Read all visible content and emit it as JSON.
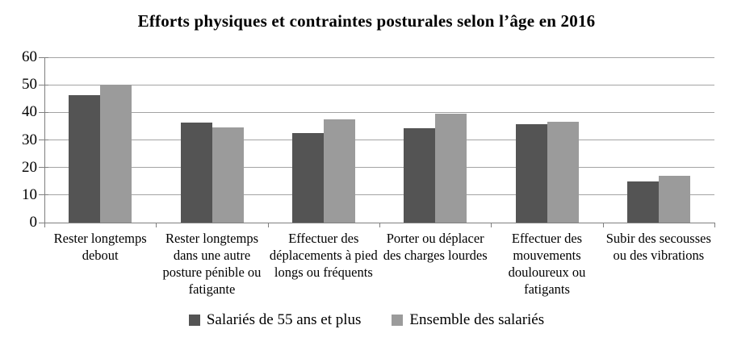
{
  "page": {
    "background": "#ffffff"
  },
  "chart_data": {
    "type": "bar",
    "title": "Efforts physiques et contraintes posturales selon l’âge en 2016",
    "categories": [
      "Rester longtemps debout",
      "Rester longtemps dans une autre posture pénible ou fatigante",
      "Effectuer des déplacements à pied longs ou fréquents",
      "Porter ou déplacer des charges lourdes",
      "Effectuer des mouvements douloureux ou fatigants",
      "Subir des secousses ou des vibrations"
    ],
    "series": [
      {
        "name": "Salariés de 55 ans et plus",
        "color": "#545454",
        "values": [
          46.3,
          36.2,
          32.4,
          34.1,
          35.6,
          14.9
        ]
      },
      {
        "name": "Ensemble des salariés",
        "color": "#9B9B9B",
        "values": [
          50.0,
          34.5,
          37.4,
          39.6,
          36.5,
          16.9
        ]
      }
    ],
    "xlabel": "",
    "ylabel": "",
    "ylim": [
      0,
      60
    ],
    "yticks": [
      0,
      10,
      20,
      30,
      40,
      50,
      60
    ],
    "grid": true,
    "legend_position": "bottom",
    "colors": {
      "gridline": "#a3a3a3",
      "axis": "#7f7f7f",
      "text": "#000000"
    }
  }
}
